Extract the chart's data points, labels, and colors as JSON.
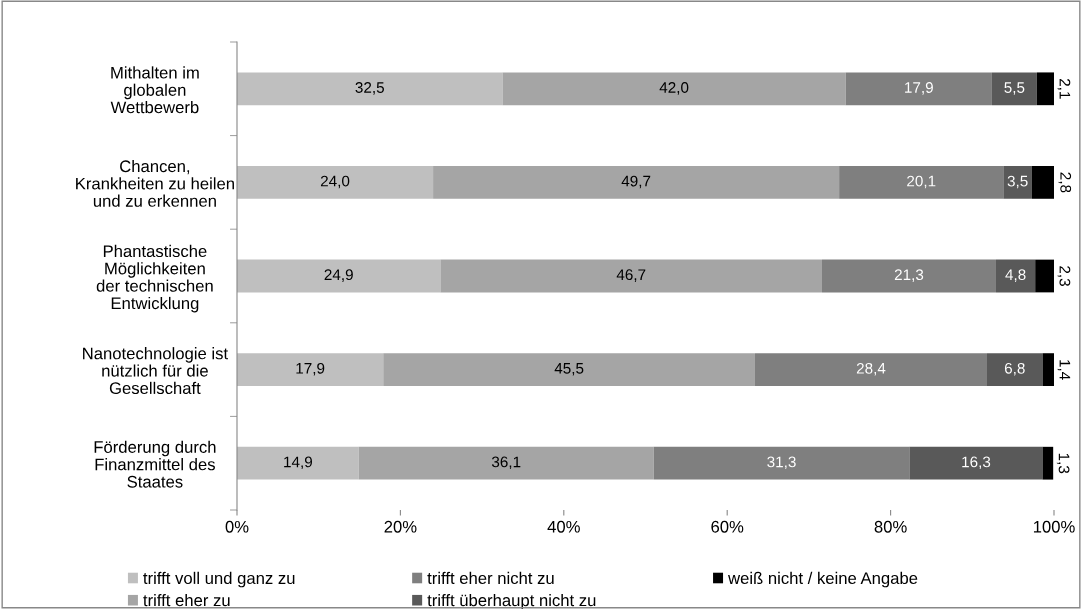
{
  "chart_data": {
    "type": "bar",
    "orientation": "horizontal",
    "stacked": true,
    "categories": [
      "Mithalten im\nglobalen\nWettbewerb",
      "Chancen,\nKrankheiten zu heilen\nund zu erkennen",
      "Phantastische\nMöglichkeiten\nder technischen\nEntwicklung",
      "Nanotechnologie ist\nnützlich für die\nGesellschaft",
      "Förderung durch\nFinanzmittel des\nStaates"
    ],
    "series": [
      {
        "name": "trifft voll und ganz zu",
        "color": "#bfbfbf",
        "values": [
          32.5,
          24.0,
          24.9,
          17.9,
          14.9
        ],
        "value_labels": [
          "32,5",
          "24,0",
          "24,9",
          "17,9",
          "14,9"
        ]
      },
      {
        "name": "trifft eher zu",
        "color": "#a5a5a5",
        "values": [
          42.0,
          49.7,
          46.7,
          45.5,
          36.1
        ],
        "value_labels": [
          "42,0",
          "49,7",
          "46,7",
          "45,5",
          "36,1"
        ]
      },
      {
        "name": "trifft eher nicht zu",
        "color": "#7f7f7f",
        "values": [
          17.9,
          20.1,
          21.3,
          28.4,
          31.3
        ],
        "value_labels": [
          "17,9",
          "20,1",
          "21,3",
          "28,4",
          "31,3"
        ]
      },
      {
        "name": "trifft überhaupt nicht zu",
        "color": "#595959",
        "values": [
          5.5,
          3.5,
          4.8,
          6.8,
          16.3
        ],
        "value_labels": [
          "5,5",
          "3,5",
          "4,8",
          "6,8",
          "16,3"
        ]
      },
      {
        "name": "weiß nicht / keine Angabe",
        "color": "#000000",
        "values": [
          2.1,
          2.8,
          2.3,
          1.4,
          1.3
        ],
        "value_labels": [
          "2,1",
          "2,8",
          "2,3",
          "1,4",
          "1,3"
        ]
      }
    ],
    "xlim": [
      0,
      100
    ],
    "xticks": [
      {
        "value": 0,
        "label": "0%"
      },
      {
        "value": 20,
        "label": "20%"
      },
      {
        "value": 40,
        "label": "40%"
      },
      {
        "value": 60,
        "label": "60%"
      },
      {
        "value": 80,
        "label": "80%"
      },
      {
        "value": 100,
        "label": "100%"
      }
    ],
    "grid": false,
    "legend": "bottom"
  }
}
